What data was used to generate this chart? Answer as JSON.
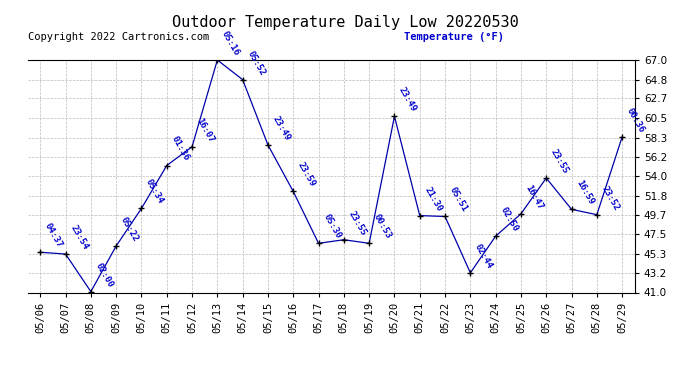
{
  "title": "Outdoor Temperature Daily Low 20220530",
  "copyright": "Copyright 2022 Cartronics.com",
  "ylabel": "Temperature (°F)",
  "dates": [
    "05/06",
    "05/07",
    "05/08",
    "05/09",
    "05/10",
    "05/11",
    "05/12",
    "05/13",
    "05/14",
    "05/15",
    "05/16",
    "05/17",
    "05/18",
    "05/19",
    "05/20",
    "05/21",
    "05/22",
    "05/23",
    "05/24",
    "05/25",
    "05/26",
    "05/27",
    "05/28",
    "05/29"
  ],
  "values": [
    45.5,
    45.3,
    41.1,
    46.2,
    50.4,
    55.2,
    57.3,
    67.0,
    64.8,
    57.5,
    52.3,
    46.5,
    46.9,
    46.5,
    60.7,
    49.6,
    49.5,
    43.2,
    47.3,
    49.8,
    53.8,
    50.3,
    49.7,
    58.4
  ],
  "time_labels": [
    "04:37",
    "23:54",
    "02:00",
    "05:22",
    "05:34",
    "01:36",
    "16:07",
    "05:16",
    "05:52",
    "23:49",
    "23:59",
    "05:30",
    "23:55",
    "00:53",
    "23:49",
    "21:30",
    "05:51",
    "02:44",
    "02:50",
    "16:47",
    "23:55",
    "16:59",
    "23:52",
    "00:36"
  ],
  "ylim_min": 41.0,
  "ylim_max": 67.0,
  "yticks": [
    41.0,
    43.2,
    45.3,
    47.5,
    49.7,
    51.8,
    54.0,
    56.2,
    58.3,
    60.5,
    62.7,
    64.8,
    67.0
  ],
  "line_color": "#0000aa",
  "marker_color": "#000000",
  "label_color": "#0000cc",
  "grid_color": "#bbbbbb",
  "bg_color": "#ffffff",
  "title_fontsize": 11,
  "label_fontsize": 6.5,
  "tick_fontsize": 7.5,
  "copyright_fontsize": 7.5
}
